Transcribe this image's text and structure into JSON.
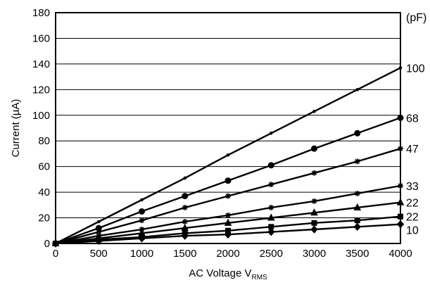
{
  "chart_data": {
    "type": "line",
    "xlabel": "AC Voltage V",
    "xlabel_sub": "RMS",
    "ylabel": "Current (µA)",
    "unit_label": "(pF)",
    "xlim": [
      0,
      4000
    ],
    "ylim": [
      0,
      180
    ],
    "x_ticks": [
      0,
      500,
      1000,
      1500,
      2000,
      2500,
      3000,
      3500,
      4000
    ],
    "y_ticks": [
      0,
      20,
      40,
      60,
      80,
      100,
      120,
      140,
      160,
      180
    ],
    "grid": "horizontal",
    "x": [
      0,
      500,
      1000,
      1500,
      2000,
      2500,
      3000,
      3500,
      4000
    ],
    "series": [
      {
        "name": "100",
        "marker": "dot",
        "values": [
          0,
          17,
          34,
          51,
          69,
          86,
          103,
          120,
          137
        ]
      },
      {
        "name": "68",
        "marker": "circle",
        "values": [
          0,
          12,
          25,
          37,
          49,
          61,
          74,
          86,
          98
        ]
      },
      {
        "name": "47",
        "marker": "star",
        "values": [
          0,
          9,
          18,
          28,
          37,
          46,
          55,
          64,
          74
        ]
      },
      {
        "name": "33",
        "marker": "star",
        "values": [
          0,
          6,
          11,
          17,
          22,
          28,
          33,
          39,
          45
        ]
      },
      {
        "name": "22",
        "marker": "triangle",
        "values": [
          0,
          4,
          8,
          12,
          16,
          20,
          24,
          28,
          32
        ]
      },
      {
        "name": "22",
        "marker": "square",
        "values": [
          0,
          3,
          5,
          8,
          10,
          13,
          16,
          18,
          21
        ]
      },
      {
        "name": "10",
        "marker": "diamond",
        "values": [
          0,
          2,
          4,
          6,
          7,
          9,
          11,
          13,
          15
        ]
      }
    ]
  }
}
